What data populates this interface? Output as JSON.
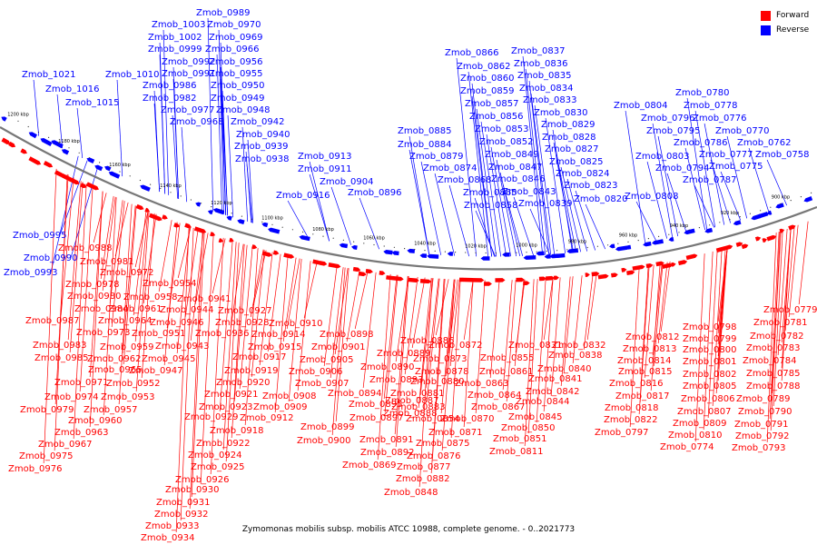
{
  "legend": {
    "forward_label": "Forward",
    "reverse_label": "Reverse",
    "forward_color": "#ff0000",
    "reverse_color": "#0000ff"
  },
  "caption": "Zymomonas mobilis subsp. mobilis ATCC 10988, complete genome. - 0..2021773",
  "scale_labels": [
    "1200 kbp",
    "1180 kbp",
    "1160 kbp",
    "1140 kbp",
    "1120 kbp",
    "1100 kbp",
    "1080 kbp",
    "1060 kbp",
    "1040 kbp",
    "1020 kbp",
    "1000 kbp",
    "980 kbp",
    "960 kbp",
    "940 kbp",
    "920 kbp",
    "900 kbp"
  ],
  "reverse_genes": [
    "Zmob_1021",
    "Zmob_1016",
    "Zmob_1015",
    "Zmob_1010",
    "Zmob_1003",
    "Zmob_1002",
    "Zmob_0999",
    "Zmob_0992",
    "Zmob_0991",
    "Zmob_0986",
    "Zmob_0982",
    "Zmob_0977",
    "Zmob_0968",
    "Zmob_0989",
    "Zmob_0970",
    "Zmob_0969",
    "Zmob_0966",
    "Zmob_0956",
    "Zmob_0955",
    "Zmob_0950",
    "Zmob_0949",
    "Zmob_0948",
    "Zmob_0942",
    "Zmob_0940",
    "Zmob_0939",
    "Zmob_0938",
    "Zmob_0916",
    "Zmob_0913",
    "Zmob_0911",
    "Zmob_0904",
    "Zmob_0896",
    "Zmob_0885",
    "Zmob_0884",
    "Zmob_0879",
    "Zmob_0874",
    "Zmob_0868",
    "Zmob_0866",
    "Zmob_0862",
    "Zmob_0860",
    "Zmob_0859",
    "Zmob_0857",
    "Zmob_0856",
    "Zmob_0853",
    "Zmob_0852",
    "Zmob_0849",
    "Zmob_0847",
    "Zmob_0846",
    "Zmob_0843",
    "Zmob_0865",
    "Zmob_0858",
    "Zmob_0837",
    "Zmob_0836",
    "Zmob_0835",
    "Zmob_0834",
    "Zmob_0833",
    "Zmob_0830",
    "Zmob_0829",
    "Zmob_0828",
    "Zmob_0827",
    "Zmob_0825",
    "Zmob_0824",
    "Zmob_0823",
    "Zmob_0820",
    "Zmob_0839",
    "Zmob_0804",
    "Zmob_0796",
    "Zmob_0795",
    "Zmob_0803",
    "Zmob_0808",
    "Zmob_0794",
    "Zmob_0787",
    "Zmob_0780",
    "Zmob_0778",
    "Zmob_0776",
    "Zmob_0786",
    "Zmob_0777",
    "Zmob_0775",
    "Zmob_0770",
    "Zmob_0762",
    "Zmob_0758",
    "Zmob_0995",
    "Zmob_0990",
    "Zmob_0993"
  ],
  "forward_genes": [
    "Zmob_0988",
    "Zmob_0981",
    "Zmob_0972",
    "Zmob_0978",
    "Zmob_0954",
    "Zmob_0980",
    "Zmob_0958",
    "Zmob_0941",
    "Zmob_0984",
    "Zmob_0961",
    "Zmob_0944",
    "Zmob_0927",
    "Zmob_0987",
    "Zmob_0964",
    "Zmob_0946",
    "Zmob_0928",
    "Zmob_0910",
    "Zmob_0973",
    "Zmob_0951",
    "Zmob_0936",
    "Zmob_0914",
    "Zmob_0983",
    "Zmob_0959",
    "Zmob_0943",
    "Zmob_0915",
    "Zmob_0901",
    "Zmob_0898",
    "Zmob_0985",
    "Zmob_0962",
    "Zmob_0945",
    "Zmob_0917",
    "Zmob_0905",
    "Zmob_0965",
    "Zmob_0947",
    "Zmob_0919",
    "Zmob_0906",
    "Zmob_0971",
    "Zmob_0952",
    "Zmob_0920",
    "Zmob_0907",
    "Zmob_0974",
    "Zmob_0953",
    "Zmob_0921",
    "Zmob_0908",
    "Zmob_0979",
    "Zmob_0957",
    "Zmob_0923",
    "Zmob_0909",
    "Zmob_0960",
    "Zmob_0929",
    "Zmob_0912",
    "Zmob_0963",
    "Zmob_0918",
    "Zmob_0967",
    "Zmob_0922",
    "Zmob_0975",
    "Zmob_0924",
    "Zmob_0976",
    "Zmob_0925",
    "Zmob_0926",
    "Zmob_0930",
    "Zmob_0931",
    "Zmob_0932",
    "Zmob_0933",
    "Zmob_0934",
    "Zmob_0886",
    "Zmob_0889",
    "Zmob_0890",
    "Zmob_0893",
    "Zmob_0894",
    "Zmob_0895",
    "Zmob_0897",
    "Zmob_0899",
    "Zmob_0900",
    "Zmob_0887",
    "Zmob_0888",
    "Zmob_0891",
    "Zmob_0892",
    "Zmob_0869",
    "Zmob_0872",
    "Zmob_0873",
    "Zmob_0878",
    "Zmob_0880",
    "Zmob_0881",
    "Zmob_0883",
    "Zmob_0854",
    "Zmob_0855",
    "Zmob_0861",
    "Zmob_0863",
    "Zmob_0864",
    "Zmob_0867",
    "Zmob_0870",
    "Zmob_0871",
    "Zmob_0875",
    "Zmob_0876",
    "Zmob_0877",
    "Zmob_0882",
    "Zmob_0848",
    "Zmob_0831",
    "Zmob_0832",
    "Zmob_0838",
    "Zmob_0840",
    "Zmob_0841",
    "Zmob_0842",
    "Zmob_0844",
    "Zmob_0845",
    "Zmob_0850",
    "Zmob_0851",
    "Zmob_0811",
    "Zmob_0812",
    "Zmob_0813",
    "Zmob_0814",
    "Zmob_0815",
    "Zmob_0816",
    "Zmob_0817",
    "Zmob_0818",
    "Zmob_0822",
    "Zmob_0797",
    "Zmob_0798",
    "Zmob_0799",
    "Zmob_0800",
    "Zmob_0801",
    "Zmob_0802",
    "Zmob_0805",
    "Zmob_0806",
    "Zmob_0807",
    "Zmob_0809",
    "Zmob_0810",
    "Zmob_0774",
    "Zmob_0779",
    "Zmob_0781",
    "Zmob_0782",
    "Zmob_0783",
    "Zmob_0784",
    "Zmob_0785",
    "Zmob_0788",
    "Zmob_0789",
    "Zmob_0790",
    "Zmob_0791",
    "Zmob_0792",
    "Zmob_0793"
  ]
}
